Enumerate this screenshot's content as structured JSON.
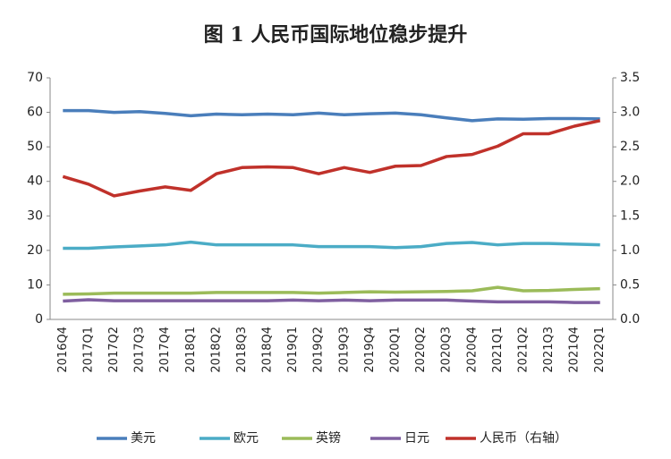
{
  "chart_data": {
    "type": "line",
    "title": "图 1 人民币国际地位稳步提升",
    "categories": [
      "2016Q4",
      "2017Q1",
      "2017Q2",
      "2017Q3",
      "2017Q4",
      "2018Q1",
      "2018Q2",
      "2018Q3",
      "2018Q4",
      "2019Q1",
      "2019Q2",
      "2019Q3",
      "2019Q4",
      "2020Q1",
      "2020Q2",
      "2020Q3",
      "2020Q4",
      "2021Q1",
      "2021Q2",
      "2021Q3",
      "2021Q4",
      "2022Q1"
    ],
    "series": [
      {
        "name": "美元",
        "color": "#4a7ebb",
        "values": [
          60.5,
          60.5,
          60,
          60.2,
          59.7,
          59,
          59.5,
          59.3,
          59.5,
          59.3,
          59.8,
          59.3,
          59.6,
          59.8,
          59.3,
          58.4,
          57.6,
          58.1,
          58,
          58.2,
          58.2,
          58.1
        ]
      },
      {
        "name": "欧元",
        "color": "#4bacc6",
        "values": [
          20.6,
          20.6,
          21,
          21.3,
          21.6,
          22.4,
          21.6,
          21.6,
          21.6,
          21.6,
          21.1,
          21.1,
          21.1,
          20.8,
          21.1,
          22,
          22.3,
          21.6,
          22,
          22,
          21.8,
          21.6
        ]
      },
      {
        "name": "英镑",
        "color": "#9bbb59",
        "values": [
          7.3,
          7.4,
          7.6,
          7.6,
          7.6,
          7.6,
          7.8,
          7.8,
          7.8,
          7.8,
          7.6,
          7.8,
          8,
          7.9,
          8,
          8.1,
          8.3,
          9.3,
          8.3,
          8.4,
          8.7,
          8.9
        ]
      },
      {
        "name": "日元",
        "color": "#7f5fa0",
        "values": [
          5.3,
          5.7,
          5.4,
          5.4,
          5.4,
          5.4,
          5.4,
          5.4,
          5.4,
          5.6,
          5.4,
          5.6,
          5.4,
          5.6,
          5.6,
          5.6,
          5.3,
          5.1,
          5.1,
          5.1,
          4.9,
          4.9
        ]
      },
      {
        "name": "人民币（右轴）",
        "color": "#c0312a",
        "axis": "y2",
        "values": [
          2.07,
          1.96,
          1.79,
          1.86,
          1.92,
          1.87,
          2.11,
          2.2,
          2.21,
          2.2,
          2.11,
          2.2,
          2.13,
          2.22,
          2.23,
          2.36,
          2.39,
          2.51,
          2.69,
          2.69,
          2.8,
          2.88
        ]
      }
    ],
    "ylim": [
      0,
      70
    ],
    "yticks": [
      0,
      10,
      20,
      30,
      40,
      50,
      60,
      70
    ],
    "y2lim": [
      0,
      3.5
    ],
    "y2ticks": [
      {
        "value": 0,
        "label": "0.0"
      },
      0.5,
      {
        "value": 1,
        "label": "1.0"
      },
      1.5,
      {
        "value": 2,
        "label": "2.0"
      },
      2.5,
      {
        "value": 3,
        "label": "3.0"
      },
      3.5
    ],
    "legend": "bottom"
  }
}
